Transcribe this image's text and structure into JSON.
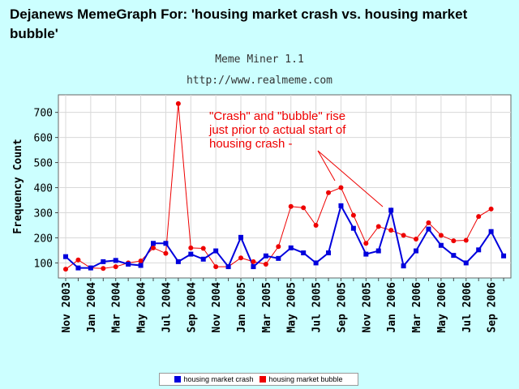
{
  "header": {
    "title": "Dejanews MemeGraph For: 'housing market crash vs. housing market bubble'",
    "subtitle": "Meme Miner 1.1",
    "url": "http://www.realmeme.com"
  },
  "chart_data": {
    "type": "line",
    "ylabel": "Frequency Count",
    "xlabel": "",
    "ylim": [
      40,
      770
    ],
    "yticks": [
      100,
      200,
      300,
      400,
      500,
      600,
      700
    ],
    "grid": true,
    "legend_position": "bottom",
    "x_tick_labels": [
      "Nov 2003",
      "Jan 2004",
      "Mar 2004",
      "May 2004",
      "Jul 2004",
      "Sep 2004",
      "Nov 2004",
      "Jan 2005",
      "Mar 2005",
      "May 2005",
      "Jul 2005",
      "Sep 2005",
      "Nov 2005",
      "Jan 2006",
      "Mar 2006",
      "May 2006",
      "Jul 2006",
      "Sep 2006"
    ],
    "series": [
      {
        "name": "housing market crash",
        "color": "#0000dd",
        "marker": "square",
        "values": [
          125,
          80,
          80,
          105,
          110,
          95,
          90,
          178,
          178,
          105,
          135,
          115,
          148,
          85,
          202,
          85,
          128,
          118,
          160,
          140,
          100,
          140,
          328,
          238,
          135,
          148,
          310,
          88,
          148,
          235,
          170,
          130,
          100,
          152,
          225,
          128
        ]
      },
      {
        "name": "housing market bubble",
        "color": "#ee0000",
        "marker": "circle",
        "values": [
          75,
          112,
          80,
          78,
          85,
          100,
          108,
          160,
          138,
          735,
          160,
          158,
          85,
          85,
          120,
          105,
          95,
          165,
          325,
          320,
          250,
          380,
          400,
          290,
          178,
          245,
          230,
          210,
          195,
          260,
          210,
          188,
          190,
          285,
          315,
          null
        ]
      }
    ],
    "annotation": {
      "lines": [
        "\"Crash\" and \"bubble\" rise",
        "just prior to actual start of",
        "housing crash -"
      ],
      "color": "#ee0000"
    }
  }
}
